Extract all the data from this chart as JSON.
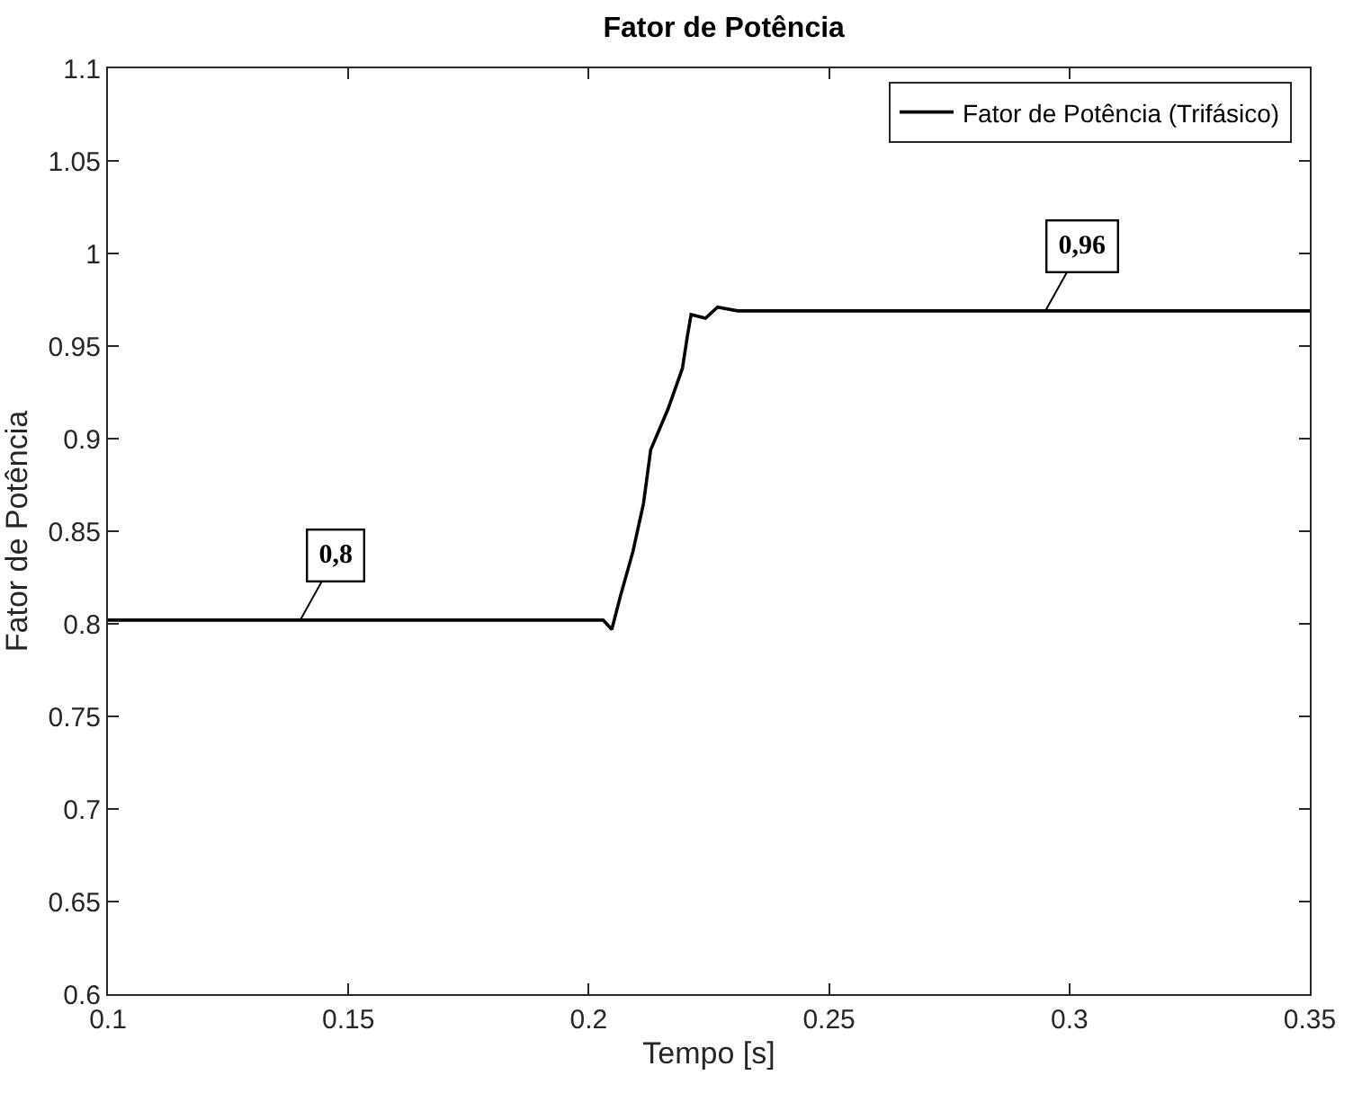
{
  "chart_data": {
    "type": "line",
    "title": "Fator de Potência",
    "xlabel": "Tempo [s]",
    "ylabel": "Fator de Potência",
    "x": [
      0.1,
      0.15,
      0.2,
      0.203,
      0.2048,
      0.2066,
      0.2092,
      0.2114,
      0.2129,
      0.2165,
      0.2195,
      0.2205,
      0.2213,
      0.2243,
      0.2268,
      0.231,
      0.25,
      0.3,
      0.35
    ],
    "series": [
      {
        "name": "Fator de Potência (Trifásico)",
        "color": "#000000",
        "values": [
          0.802,
          0.802,
          0.802,
          0.802,
          0.797,
          0.815,
          0.839,
          0.865,
          0.894,
          0.916,
          0.938,
          0.955,
          0.967,
          0.965,
          0.971,
          0.969,
          0.969,
          0.969,
          0.969
        ]
      }
    ],
    "annotations": [
      {
        "text": "0,8",
        "x": 0.14,
        "y": 0.802
      },
      {
        "text": "0,96",
        "x": 0.295,
        "y": 0.969
      }
    ],
    "xlim": [
      0.1,
      0.35
    ],
    "xticks": [
      {
        "value": 0.1,
        "label": "0.1"
      },
      0.15,
      {
        "value": 0.2,
        "label": "0.2"
      },
      0.25,
      {
        "value": 0.3,
        "label": "0.3"
      },
      0.35
    ],
    "ylim": [
      0.6,
      1.1
    ],
    "yticks": [
      {
        "value": 0.6,
        "label": "0.6"
      },
      0.65,
      {
        "value": 0.7,
        "label": "0.7"
      },
      0.75,
      {
        "value": 0.8,
        "label": "0.8"
      },
      0.85,
      {
        "value": 0.9,
        "label": "0.9"
      },
      0.95,
      1,
      1.05,
      {
        "value": 1.1,
        "label": "1.1"
      }
    ],
    "legend": "top right",
    "grid": false,
    "marker": "none",
    "line_style": "solid"
  }
}
